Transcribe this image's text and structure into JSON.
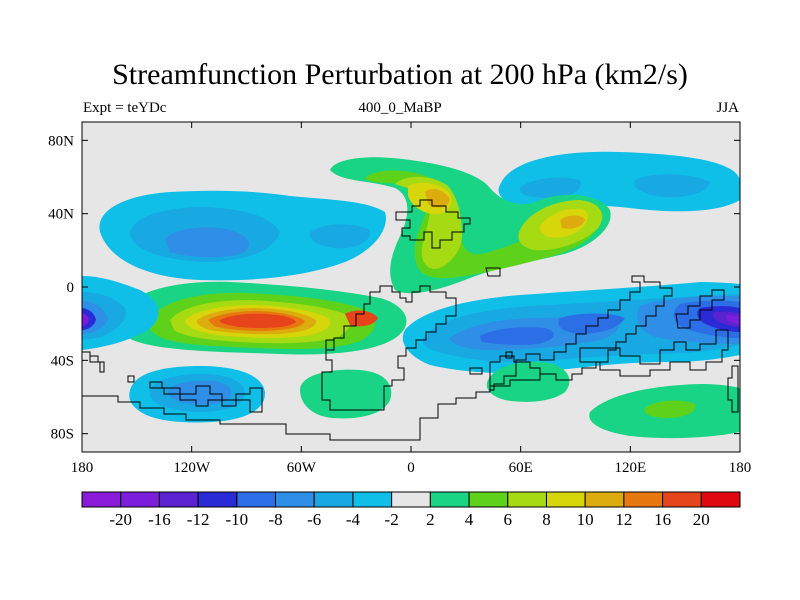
{
  "title": "Streamfunction Perturbation at 200 hPa (km2/s)",
  "subtitle_left": "Expt = teYDc",
  "subtitle_center": "400_0_MaBP",
  "subtitle_right": "JJA",
  "map": {
    "lon_range": [
      -180,
      180
    ],
    "lat_range": [
      -90,
      90
    ],
    "x_ticks": [
      {
        "value": -180,
        "label": "180"
      },
      {
        "value": -120,
        "label": "120W"
      },
      {
        "value": -60,
        "label": "60W"
      },
      {
        "value": 0,
        "label": "0"
      },
      {
        "value": 60,
        "label": "60E"
      },
      {
        "value": 120,
        "label": "120E"
      },
      {
        "value": 180,
        "label": "180"
      }
    ],
    "y_ticks": [
      {
        "value": 80,
        "label": "80N"
      },
      {
        "value": 40,
        "label": "40N"
      },
      {
        "value": 0,
        "label": "0"
      },
      {
        "value": -40,
        "label": "40S"
      },
      {
        "value": -80,
        "label": "80S"
      }
    ]
  },
  "colorbar": {
    "colors": [
      "#8a1bd8",
      "#7a1edc",
      "#5a22d0",
      "#2a2ad6",
      "#2b6ee6",
      "#2f8ee6",
      "#18a8e2",
      "#10bfe8",
      "#e6e6e6",
      "#19d484",
      "#5ed21a",
      "#a6da12",
      "#d6d60a",
      "#dcac0e",
      "#e6780e",
      "#e6441a",
      "#e00810"
    ],
    "labels": [
      "-20",
      "-16",
      "-12",
      "-10",
      "-8",
      "-6",
      "-4",
      "-2",
      "2",
      "4",
      "6",
      "8",
      "10",
      "12",
      "16",
      "20"
    ]
  },
  "palette": {
    "neutral": "#e6e6e6",
    "n2": "#10bfe8",
    "n4": "#18a8e2",
    "n6": "#2f8ee6",
    "n8": "#2b6ee6",
    "n10": "#2a2ad6",
    "n12": "#5a22d0",
    "n16": "#7a1edc",
    "p2": "#19d484",
    "p4": "#5ed21a",
    "p6": "#a6da12",
    "p8": "#d6d60a",
    "p10": "#dcac0e",
    "p12": "#e6780e",
    "p16": "#e6441a",
    "p20": "#e00810"
  }
}
